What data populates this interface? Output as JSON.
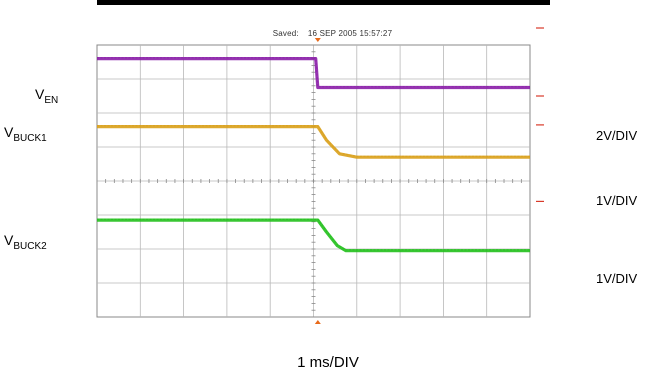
{
  "header": {
    "saved_label": "Saved:",
    "saved_timestamp": "16 SEP 2005  15:57:27"
  },
  "chart_data": {
    "type": "line",
    "grid": true,
    "x_divisions": 10,
    "y_divisions": 8,
    "x_unit": "ms",
    "x_scale": "1 ms/DIV",
    "series": [
      {
        "name": "V_EN",
        "label_main": "V",
        "label_sub": "EN",
        "scale": "2V/DIV",
        "color": "#8b1fa8",
        "points": [
          [
            0,
            7.6
          ],
          [
            5.05,
            7.6
          ],
          [
            5.1,
            6.75
          ],
          [
            10,
            6.75
          ]
        ]
      },
      {
        "name": "V_BUCK1",
        "label_main": "V",
        "label_sub": "BUCK1",
        "scale": "1V/DIV",
        "color": "#d9a019",
        "points": [
          [
            0,
            5.6
          ],
          [
            5.1,
            5.6
          ],
          [
            5.3,
            5.2
          ],
          [
            5.6,
            4.8
          ],
          [
            6.0,
            4.7
          ],
          [
            10,
            4.7
          ]
        ]
      },
      {
        "name": "V_BUCK2",
        "label_main": "V",
        "label_sub": "BUCK2",
        "scale": "1V/DIV",
        "color": "#22c01c",
        "points": [
          [
            0,
            2.85
          ],
          [
            5.1,
            2.85
          ],
          [
            5.3,
            2.5
          ],
          [
            5.55,
            2.1
          ],
          [
            5.75,
            1.95
          ],
          [
            10,
            1.95
          ]
        ]
      }
    ],
    "ref_markers": [
      8.5,
      6.5,
      5.65,
      3.4
    ],
    "trigger_position": 5.1
  }
}
